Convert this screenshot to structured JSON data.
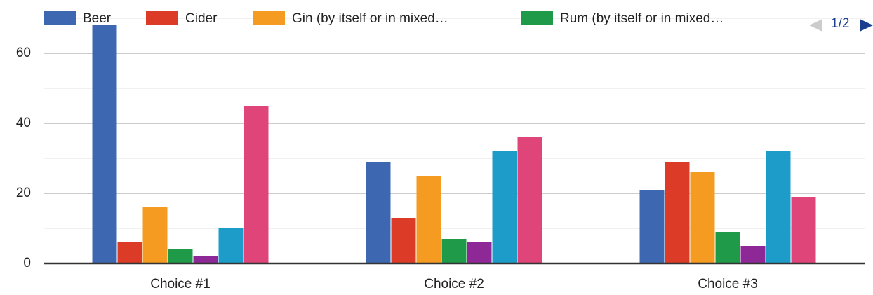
{
  "chart_data": {
    "type": "bar",
    "categories": [
      "Choice #1",
      "Choice #2",
      "Choice #3"
    ],
    "ylim": [
      0,
      70
    ],
    "yticks": [
      0,
      20,
      40,
      60
    ],
    "grid": true,
    "legend_position": "top",
    "series": [
      {
        "name": "Beer",
        "color": "#3d68b1",
        "values": [
          68,
          29,
          21
        ]
      },
      {
        "name": "Cider",
        "color": "#dc3c27",
        "values": [
          6,
          13,
          29
        ]
      },
      {
        "name": "Gin (by itself or in mixed…",
        "color": "#f59b21",
        "values": [
          16,
          25,
          26
        ]
      },
      {
        "name": "Rum (by itself or in mixed…",
        "color": "#1e9a49",
        "values": [
          4,
          7,
          9
        ]
      },
      {
        "name": "",
        "color": "#8e2896",
        "values": [
          2,
          6,
          5
        ]
      },
      {
        "name": "",
        "color": "#1d9cca",
        "values": [
          10,
          32,
          32
        ]
      },
      {
        "name": "",
        "color": "#df4579",
        "values": [
          45,
          36,
          19
        ]
      }
    ]
  },
  "legend": {
    "pager": "1/2"
  }
}
